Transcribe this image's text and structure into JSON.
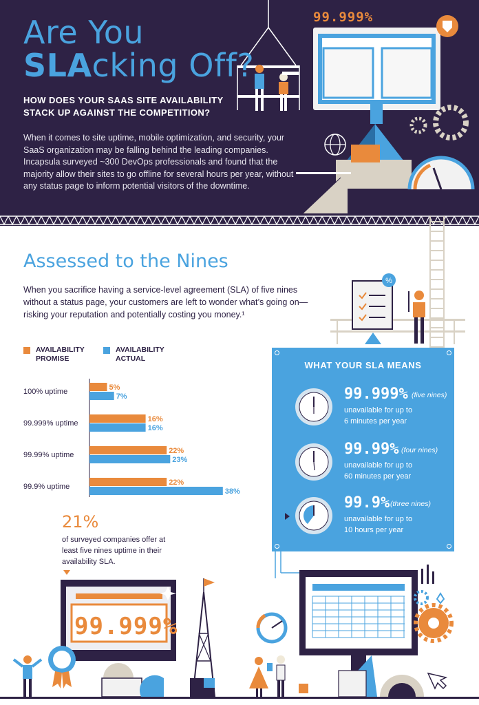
{
  "colors": {
    "navy": "#2e2245",
    "blue": "#4aa3df",
    "orange": "#e98a3c",
    "white": "#ffffff"
  },
  "header": {
    "title_line1": "Are You",
    "title_line2_strong": "SLA",
    "title_line2_rest": "cking Off?",
    "subtitle_line1": "HOW DOES YOUR SAAS SITE AVAILABILITY",
    "subtitle_line2": "STACK UP AGAINST THE COMPETITION?",
    "body": "When it comes to site uptime, mobile optimization, and security, your SaaS organization may be falling behind the leading companies. Incapsula surveyed ~300 DevOps professionals and found that the majority allow their sites to go offline for several hours per year, without any status page to inform potential visitors of the downtime.",
    "illustration_nines": "99.999%"
  },
  "section": {
    "title": "Assessed to the Nines",
    "body": "When you sacrifice having a service-level agreement (SLA) of five nines without a status page, your customers are left to wonder what’s going on—risking your reputation and potentially costing you money.¹"
  },
  "legend": {
    "promise_line1": "AVAILABILITY",
    "promise_line2": "PROMISE",
    "actual_line1": "AVAILABILITY",
    "actual_line2": "ACTUAL"
  },
  "chart_data": {
    "type": "bar",
    "orientation": "horizontal",
    "categories": [
      "100% uptime",
      "99.999% uptime",
      "99.99% uptime",
      "99.9% uptime"
    ],
    "series": [
      {
        "name": "AVAILABILITY PROMISE",
        "color": "#e98a3c",
        "values": [
          5,
          16,
          22,
          22
        ]
      },
      {
        "name": "AVAILABILITY ACTUAL",
        "color": "#4aa3df",
        "values": [
          7,
          16,
          23,
          38
        ]
      }
    ],
    "value_labels": {
      "promise": [
        "5%",
        "16%",
        "22%",
        "22%"
      ],
      "actual": [
        "7%",
        "16%",
        "23%",
        "38%"
      ]
    },
    "unit": "%",
    "xlim": [
      0,
      40
    ]
  },
  "stat": {
    "percent": "21%",
    "text": "of surveyed companies offer at least five nines uptime in their availability SLA."
  },
  "sla": {
    "title": "WHAT YOUR SLA MEANS",
    "rows": [
      {
        "nines": "99.999%",
        "label": "(five nines)",
        "line1": "unavailable for up to",
        "line2": "6 minutes per year"
      },
      {
        "nines": "99.99%",
        "label": "(four nines)",
        "line1": "unavailable for up to",
        "line2": "60 minutes per year"
      },
      {
        "nines": "99.9%",
        "label": "(three nines)",
        "line1": "unavailable for up to",
        "line2": "10 hours per year"
      }
    ]
  },
  "monitor_nines": "99.999%"
}
